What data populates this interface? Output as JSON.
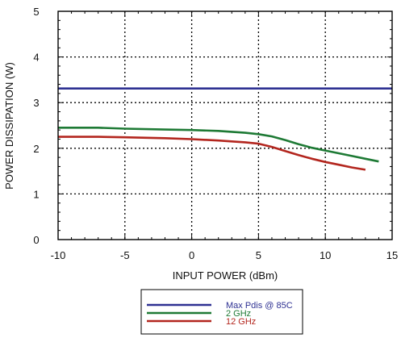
{
  "chart_data": {
    "type": "line",
    "xlabel": "INPUT POWER (dBm)",
    "ylabel": "POWER DISSIPATION (W)",
    "xlim": [
      -10,
      15
    ],
    "ylim": [
      0,
      5
    ],
    "xticks": [
      -10,
      -5,
      0,
      5,
      10,
      15
    ],
    "yticks": [
      0,
      1,
      2,
      3,
      4,
      5
    ],
    "x_tick_labels": [
      "-10",
      "-5",
      "0",
      "5",
      "10",
      "15"
    ],
    "y_tick_labels": [
      "0",
      "1",
      "2",
      "3",
      "4",
      "5"
    ],
    "grid": true,
    "grid_style": "dotted",
    "legend_position": "bottom-center, below chart",
    "series": [
      {
        "name": "Max Pdis @ 85C",
        "color": "#2e3192",
        "x": [
          -10,
          15
        ],
        "y": [
          3.31,
          3.31
        ]
      },
      {
        "name": "2 GHz",
        "color": "#1e7a35",
        "x": [
          -10,
          -7,
          -5,
          -2,
          0,
          2,
          4,
          5,
          6,
          7,
          8,
          9,
          10,
          11,
          12,
          13,
          14
        ],
        "y": [
          2.45,
          2.45,
          2.43,
          2.41,
          2.4,
          2.38,
          2.34,
          2.31,
          2.26,
          2.18,
          2.09,
          2.01,
          1.95,
          1.89,
          1.83,
          1.77,
          1.71
        ]
      },
      {
        "name": "12 GHz",
        "color": "#b3261e",
        "x": [
          -10,
          -7,
          -5,
          -2,
          0,
          2,
          4,
          5,
          6,
          7,
          8,
          9,
          10,
          11,
          12,
          13
        ],
        "y": [
          2.25,
          2.25,
          2.24,
          2.22,
          2.2,
          2.17,
          2.13,
          2.1,
          2.03,
          1.94,
          1.85,
          1.77,
          1.7,
          1.64,
          1.58,
          1.53
        ]
      }
    ]
  }
}
